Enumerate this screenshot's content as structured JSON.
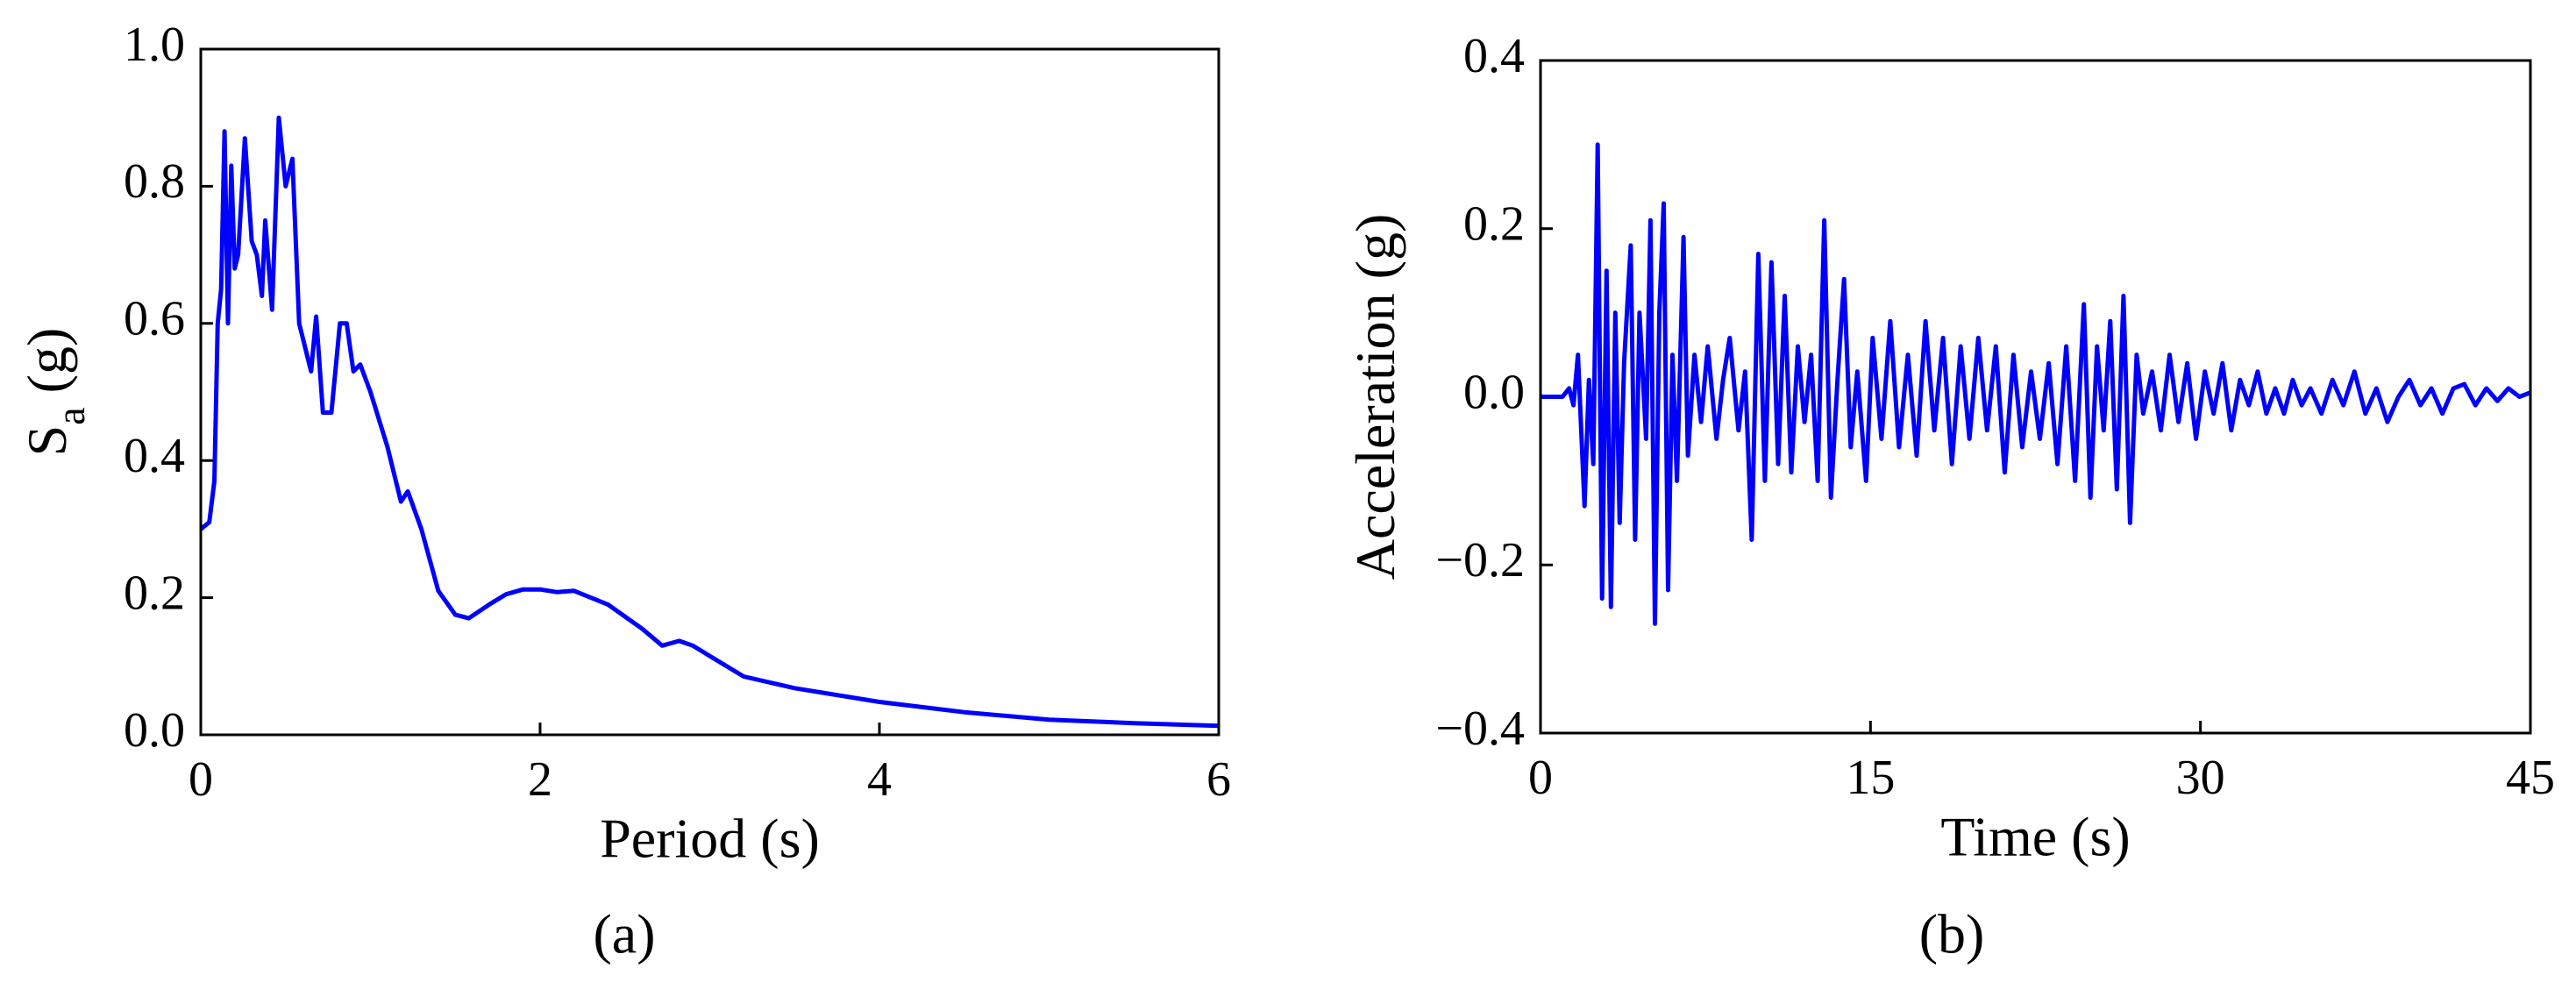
{
  "chart_data": [
    {
      "type": "line",
      "xlabel": "Period (s)",
      "ylabel": [
        "S",
        "a",
        " (g)"
      ],
      "caption": "(a)",
      "x": [
        0,
        0.05,
        0.08,
        0.1,
        0.12,
        0.14,
        0.16,
        0.18,
        0.2,
        0.22,
        0.26,
        0.3,
        0.33,
        0.36,
        0.38,
        0.42,
        0.46,
        0.5,
        0.54,
        0.58,
        0.65,
        0.68,
        0.72,
        0.77,
        0.82,
        0.86,
        0.9,
        0.94,
        1.0,
        1.1,
        1.18,
        1.22,
        1.3,
        1.4,
        1.5,
        1.58,
        1.7,
        1.8,
        1.9,
        2.0,
        2.1,
        2.2,
        2.4,
        2.6,
        2.72,
        2.82,
        2.9,
        3.0,
        3.2,
        3.5,
        4.0,
        4.5,
        5.0,
        5.5,
        6.0
      ],
      "series": [
        {
          "color": "#0000ff",
          "values": [
            0.3,
            0.31,
            0.37,
            0.6,
            0.65,
            0.88,
            0.6,
            0.83,
            0.68,
            0.7,
            0.87,
            0.72,
            0.7,
            0.64,
            0.75,
            0.62,
            0.9,
            0.8,
            0.84,
            0.6,
            0.53,
            0.61,
            0.47,
            0.47,
            0.6,
            0.6,
            0.53,
            0.54,
            0.5,
            0.42,
            0.34,
            0.355,
            0.3,
            0.21,
            0.175,
            0.17,
            0.19,
            0.205,
            0.212,
            0.212,
            0.208,
            0.21,
            0.19,
            0.155,
            0.13,
            0.137,
            0.13,
            0.115,
            0.085,
            0.068,
            0.048,
            0.033,
            0.022,
            0.017,
            0.013
          ]
        }
      ],
      "xlim": [
        0,
        6
      ],
      "xticks": [
        0,
        2,
        4,
        6
      ],
      "ylim": [
        0,
        1
      ],
      "yticks": [
        {
          "value": 0,
          "label": "0.0"
        },
        0.2,
        0.4,
        0.6,
        0.8,
        {
          "value": 1,
          "label": "1.0"
        }
      ]
    },
    {
      "type": "line",
      "xlabel": "Time (s)",
      "ylabel": [
        "Acceleration (g)"
      ],
      "caption": "(b)",
      "x": [
        0,
        1,
        1.3,
        1.5,
        1.7,
        2.0,
        2.2,
        2.4,
        2.6,
        2.8,
        3.0,
        3.2,
        3.4,
        3.6,
        3.8,
        4.1,
        4.3,
        4.5,
        4.8,
        5.0,
        5.2,
        5.4,
        5.6,
        5.8,
        6.0,
        6.2,
        6.5,
        6.7,
        7.0,
        7.3,
        7.6,
        8.0,
        8.3,
        8.6,
        9.0,
        9.3,
        9.6,
        9.9,
        10.2,
        10.5,
        10.8,
        11.1,
        11.4,
        11.7,
        12.0,
        12.3,
        12.6,
        12.9,
        13.2,
        13.5,
        13.8,
        14.1,
        14.4,
        14.8,
        15.1,
        15.5,
        15.9,
        16.3,
        16.7,
        17.1,
        17.5,
        17.9,
        18.3,
        18.7,
        19.1,
        19.5,
        19.9,
        20.3,
        20.7,
        21.1,
        21.5,
        21.9,
        22.3,
        22.7,
        23.1,
        23.5,
        23.9,
        24.3,
        24.7,
        25.0,
        25.3,
        25.6,
        25.9,
        26.2,
        26.5,
        26.8,
        27.1,
        27.4,
        27.8,
        28.2,
        28.6,
        29.0,
        29.4,
        29.8,
        30.2,
        30.6,
        31.0,
        31.4,
        31.8,
        32.2,
        32.6,
        33.0,
        33.4,
        33.8,
        34.2,
        34.6,
        35.0,
        35.5,
        36.0,
        36.5,
        37.0,
        37.5,
        38.0,
        38.5,
        39.0,
        39.5,
        40.0,
        40.5,
        41.0,
        41.5,
        42.0,
        42.5,
        43.0,
        43.5,
        44.0,
        44.5,
        45
      ],
      "series": [
        {
          "color": "#0000ff",
          "values": [
            0,
            0,
            0.01,
            -0.01,
            0.05,
            -0.13,
            0.02,
            -0.08,
            0.3,
            -0.24,
            0.15,
            -0.25,
            0.1,
            -0.15,
            0.04,
            0.18,
            -0.17,
            0.1,
            -0.05,
            0.21,
            -0.27,
            0.1,
            0.23,
            -0.23,
            0.05,
            -0.1,
            0.19,
            -0.07,
            0.05,
            -0.03,
            0.06,
            -0.05,
            0.02,
            0.07,
            -0.04,
            0.03,
            -0.17,
            0.17,
            -0.1,
            0.16,
            -0.08,
            0.12,
            -0.09,
            0.06,
            -0.03,
            0.05,
            -0.1,
            0.21,
            -0.12,
            0.02,
            0.14,
            -0.06,
            0.03,
            -0.1,
            0.07,
            -0.05,
            0.09,
            -0.06,
            0.05,
            -0.07,
            0.09,
            -0.04,
            0.07,
            -0.08,
            0.06,
            -0.05,
            0.07,
            -0.04,
            0.06,
            -0.09,
            0.05,
            -0.06,
            0.03,
            -0.05,
            0.04,
            -0.08,
            0.06,
            -0.1,
            0.11,
            -0.12,
            0.06,
            -0.04,
            0.09,
            -0.11,
            0.12,
            -0.15,
            0.05,
            -0.02,
            0.03,
            -0.04,
            0.05,
            -0.03,
            0.04,
            -0.05,
            0.03,
            -0.02,
            0.04,
            -0.04,
            0.02,
            -0.01,
            0.03,
            -0.02,
            0.01,
            -0.02,
            0.02,
            -0.01,
            0.01,
            -0.02,
            0.02,
            -0.01,
            0.03,
            -0.02,
            0.01,
            -0.03,
            0,
            0.02,
            -0.01,
            0.01,
            -0.02,
            0.01,
            0.015,
            -0.01,
            0.01,
            -0.005,
            0.01,
            0,
            0.005
          ]
        }
      ],
      "xlim": [
        0,
        45
      ],
      "xticks": [
        0,
        15,
        30,
        45
      ],
      "ylim": [
        -0.4,
        0.4
      ],
      "yticks": [
        {
          "value": -0.4,
          "label": "−0.4"
        },
        {
          "value": -0.2,
          "label": "−0.2"
        },
        {
          "value": 0,
          "label": "0.0"
        },
        0.2,
        0.4
      ]
    }
  ]
}
